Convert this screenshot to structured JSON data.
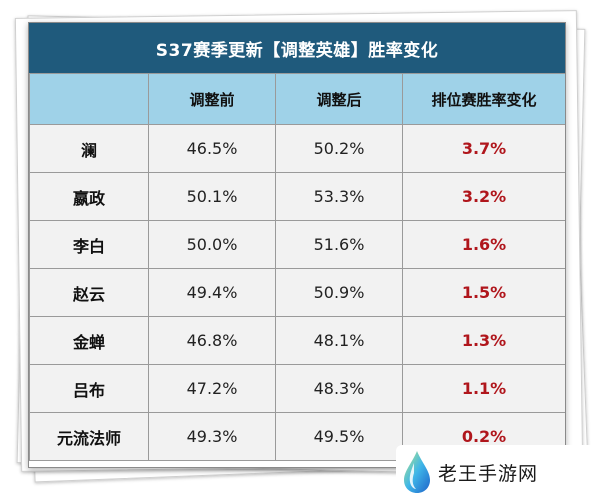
{
  "title": "S37赛季更新【调整英雄】胜率变化",
  "headers": [
    "",
    "调整前",
    "调整后",
    "排位赛胜率变化"
  ],
  "rows": [
    {
      "hero": "澜",
      "before": "46.5%",
      "after": "50.2%",
      "change": "3.7%"
    },
    {
      "hero": "嬴政",
      "before": "50.1%",
      "after": "53.3%",
      "change": "3.2%"
    },
    {
      "hero": "李白",
      "before": "50.0%",
      "after": "51.6%",
      "change": "1.6%"
    },
    {
      "hero": "赵云",
      "before": "49.4%",
      "after": "50.9%",
      "change": "1.5%"
    },
    {
      "hero": "金蝉",
      "before": "46.8%",
      "after": "48.1%",
      "change": "1.3%"
    },
    {
      "hero": "吕布",
      "before": "47.2%",
      "after": "48.3%",
      "change": "1.1%"
    },
    {
      "hero": "元流法师",
      "before": "49.3%",
      "after": "49.5%",
      "change": "0.2%"
    }
  ],
  "watermark": {
    "text": "老王手游网",
    "icon": "water-drop-logo-icon"
  },
  "colors": {
    "title_bg": "#1f5a7c",
    "header_bg": "#9fd2e8",
    "cell_bg": "#f2f2f2",
    "change_text": "#b0161c"
  }
}
